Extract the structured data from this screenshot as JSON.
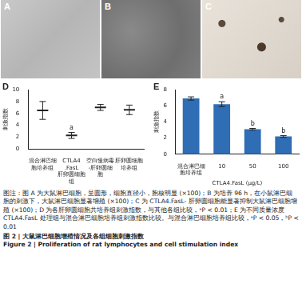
{
  "panels": [
    "A",
    "B",
    "C"
  ],
  "chart_data": [
    {
      "panel": "D",
      "type": "line",
      "marker": "line",
      "line_style": "none",
      "color": "#222222",
      "categories": [
        "混合淋巴细胞培养组",
        "CTLA4.FasL肝卵圆细胞组",
        "空白慢病毒-肝卵圆细胞",
        "肝卵圆细胞培养组"
      ],
      "values": [
        6.5,
        2.3,
        7.0,
        6.6
      ],
      "errors": [
        1.5,
        0.5,
        0.5,
        0.8
      ],
      "significance": [
        null,
        "a",
        null,
        null
      ],
      "y_label": "刺激指数",
      "ylim": [
        0,
        10
      ],
      "yticks": [
        0,
        2,
        4,
        6,
        8,
        10
      ],
      "grid": false
    },
    {
      "panel": "E",
      "type": "bar",
      "color": "#2f6db5",
      "categories": [
        "混合淋巴细胞培养组",
        "10",
        "50",
        "100"
      ],
      "values": [
        6.9,
        6.2,
        3.1,
        2.2
      ],
      "errors": [
        0.2,
        0.3,
        0.1,
        0.1
      ],
      "significance": [
        null,
        "a",
        "b",
        "b"
      ],
      "y_label": "刺激指数",
      "x_label": "CTLA4.FasL (μg/L)",
      "ylim": [
        0,
        8
      ],
      "yticks": [
        0,
        2,
        4,
        6,
        8
      ],
      "grid": false
    }
  ],
  "caption": {
    "note": "图注：图 A 为大鼠淋巴细胞，呈圆形，细胞直径小，胞核明显 (×100)；B 为培养 96 h，在小鼠淋巴细胞的刺激下，大鼠淋巴细胞显著增殖 (×100)；C 为 CTLA4.FasL- 肝卵圆细胞能显著抑制大鼠淋巴细胞增殖 (×100)；D 为各肝卵圆细胞共培养组刺激指数，与其他各组比较，ᵃP < 0.01；E 为不同质量浓度 CTLA4.FasL 处理组与混合淋巴细胞培养组刺激指数比较。与混合淋巴细胞培养组比较，ᵃP < 0.05，ᵇP < 0.01",
    "title_cn": "图 2 | 大鼠淋巴细胞增殖情况及各组细胞刺激指数",
    "title_en": "Figure 2 | Proliferation of rat lymphocytes and cell stimulation index"
  }
}
